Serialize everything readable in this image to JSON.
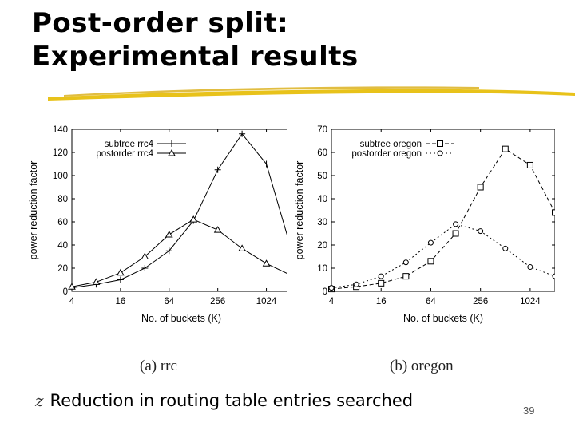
{
  "slide": {
    "title_line1": "Post-order split:",
    "title_line2": "Experimental results",
    "bullet": "Reduction in routing table entries searched",
    "page_number": "39",
    "accent_color": "#e8c21a"
  },
  "chart_data": [
    {
      "type": "line",
      "caption": "(a) rrc",
      "xlabel": "No. of buckets (K)",
      "ylabel": "power reduction factor",
      "x_scale": "log2",
      "x": [
        4,
        8,
        16,
        32,
        64,
        128,
        256,
        512,
        1024,
        2048
      ],
      "x_ticks": [
        4,
        16,
        64,
        256,
        1024
      ],
      "ylim": [
        0,
        140
      ],
      "y_ticks": [
        0,
        20,
        40,
        60,
        80,
        100,
        120,
        140
      ],
      "legend_position": "top-right",
      "series": [
        {
          "name": "subtree rrc4",
          "marker": "plus",
          "dash": "solid",
          "values": [
            3,
            6,
            10,
            20,
            35,
            61,
            105,
            136,
            110,
            38
          ]
        },
        {
          "name": "postorder rrc4",
          "marker": "triangle",
          "dash": "solid",
          "values": [
            4,
            8,
            16,
            30,
            49,
            62,
            53,
            37,
            24,
            14
          ]
        }
      ]
    },
    {
      "type": "line",
      "caption": "(b) oregon",
      "xlabel": "No. of buckets (K)",
      "ylabel": "power reduction factor",
      "x_scale": "log2",
      "x": [
        4,
        8,
        16,
        32,
        64,
        128,
        256,
        512,
        1024,
        2048
      ],
      "x_ticks": [
        4,
        16,
        64,
        256,
        1024
      ],
      "ylim": [
        0,
        70
      ],
      "y_ticks": [
        0,
        10,
        20,
        30,
        40,
        50,
        60,
        70
      ],
      "legend_position": "top-right",
      "series": [
        {
          "name": "subtree oregon",
          "marker": "square",
          "dash": "dashed",
          "values": [
            1,
            2,
            3.5,
            6.5,
            13,
            25,
            45,
            61.5,
            54.5,
            34
          ]
        },
        {
          "name": "postorder oregon",
          "marker": "circle",
          "dash": "dotted",
          "values": [
            1.5,
            3,
            6.5,
            12.5,
            21,
            29,
            26,
            18.5,
            10.5,
            6.5
          ]
        }
      ]
    }
  ]
}
